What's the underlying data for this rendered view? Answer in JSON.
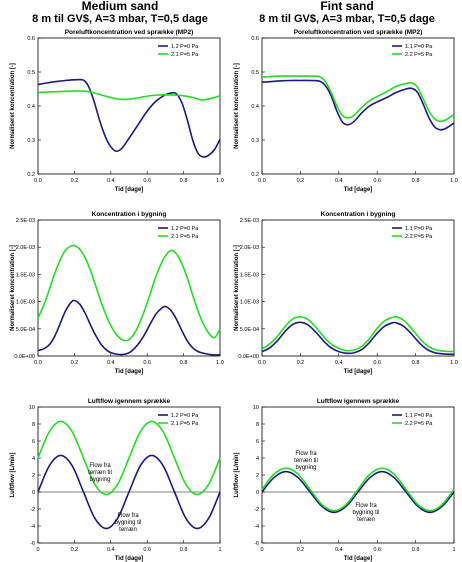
{
  "columns": [
    {
      "title": "Medium sand",
      "subtitle": "8 m til GV$, A=3 mbar, T=0,5 dage"
    },
    {
      "title": "Fint sand",
      "subtitle": "8 m til GV$, A=3 mbar, T=0,5 dage"
    }
  ],
  "colors": {
    "blue": "#1a1a80",
    "green": "#22dd22"
  },
  "chart_data": [
    {
      "type": "line",
      "title": "Poreluftkoncentration ved sprække (MP2)",
      "xlabel": "Tid [dage]",
      "ylabel": "Normaliseret koncentration [-]",
      "xlim": [
        0,
        1
      ],
      "ylim": [
        0.2,
        0.6
      ],
      "xticks": [
        "0.0",
        "0.2",
        "0.4",
        "0.6",
        "0.8",
        "1.0"
      ],
      "yticks": [
        "0.2",
        "0.3",
        "0.4",
        "0.5",
        "0.6"
      ],
      "legend": "top-right",
      "series": [
        {
          "name": "1.2 P=0 Pa",
          "color": "#1a1a80",
          "x": [
            0,
            0.05,
            0.1,
            0.15,
            0.2,
            0.25,
            0.28,
            0.31,
            0.34,
            0.37,
            0.4,
            0.43,
            0.46,
            0.5,
            0.55,
            0.6,
            0.65,
            0.7,
            0.73,
            0.76,
            0.79,
            0.82,
            0.85,
            0.88,
            0.91,
            0.94,
            0.97,
            1.0
          ],
          "y": [
            0.463,
            0.468,
            0.472,
            0.475,
            0.477,
            0.476,
            0.455,
            0.41,
            0.355,
            0.31,
            0.28,
            0.267,
            0.275,
            0.305,
            0.345,
            0.385,
            0.415,
            0.433,
            0.438,
            0.436,
            0.41,
            0.36,
            0.3,
            0.26,
            0.25,
            0.256,
            0.272,
            0.302
          ]
        },
        {
          "name": "2.1 P=5 Pa",
          "color": "#22dd22",
          "x": [
            0,
            0.1,
            0.2,
            0.25,
            0.3,
            0.35,
            0.4,
            0.45,
            0.5,
            0.55,
            0.6,
            0.65,
            0.7,
            0.75,
            0.8,
            0.85,
            0.9,
            0.95,
            1.0
          ],
          "y": [
            0.44,
            0.442,
            0.444,
            0.444,
            0.44,
            0.432,
            0.425,
            0.42,
            0.42,
            0.424,
            0.429,
            0.432,
            0.433,
            0.432,
            0.43,
            0.425,
            0.418,
            0.422,
            0.43
          ]
        }
      ]
    },
    {
      "type": "line",
      "title": "Poreluftkoncentration ved sprække (MP2)",
      "xlabel": "Tid [dage]",
      "ylabel": "Normaliseret koncentration [-]",
      "xlim": [
        0,
        1
      ],
      "ylim": [
        0.2,
        0.6
      ],
      "xticks": [
        "0.0",
        "0.2",
        "0.4",
        "0.6",
        "0.8",
        "1.0"
      ],
      "yticks": [
        "0.2",
        "0.3",
        "0.4",
        "0.5",
        "0.6"
      ],
      "legend": "top-right",
      "series": [
        {
          "name": "1.1 P=0 Pa",
          "color": "#1a1a80",
          "x": [
            0,
            0.05,
            0.1,
            0.15,
            0.2,
            0.25,
            0.3,
            0.33,
            0.36,
            0.39,
            0.42,
            0.45,
            0.48,
            0.52,
            0.56,
            0.6,
            0.65,
            0.7,
            0.75,
            0.78,
            0.81,
            0.84,
            0.87,
            0.9,
            0.93,
            0.96,
            1.0
          ],
          "y": [
            0.47,
            0.472,
            0.474,
            0.475,
            0.475,
            0.475,
            0.473,
            0.46,
            0.43,
            0.385,
            0.352,
            0.345,
            0.355,
            0.38,
            0.4,
            0.412,
            0.425,
            0.44,
            0.45,
            0.452,
            0.44,
            0.405,
            0.365,
            0.338,
            0.33,
            0.335,
            0.35
          ]
        },
        {
          "name": "2.2 P=5 Pa",
          "color": "#22dd22",
          "x": [
            0,
            0.05,
            0.1,
            0.15,
            0.2,
            0.25,
            0.3,
            0.33,
            0.36,
            0.39,
            0.42,
            0.45,
            0.48,
            0.52,
            0.56,
            0.6,
            0.65,
            0.7,
            0.75,
            0.78,
            0.81,
            0.84,
            0.87,
            0.9,
            0.93,
            0.96,
            1.0
          ],
          "y": [
            0.485,
            0.487,
            0.488,
            0.488,
            0.488,
            0.488,
            0.486,
            0.472,
            0.44,
            0.4,
            0.372,
            0.365,
            0.373,
            0.396,
            0.415,
            0.428,
            0.442,
            0.458,
            0.466,
            0.468,
            0.455,
            0.42,
            0.385,
            0.362,
            0.355,
            0.36,
            0.375
          ]
        }
      ]
    },
    {
      "type": "line",
      "title": "Koncentration i bygning",
      "xlabel": "Tid [dage]",
      "ylabel": "Normaliseret koncentration [-]",
      "xlim": [
        0,
        1
      ],
      "ylim": [
        0,
        0.0025
      ],
      "xticks": [
        "0.0",
        "0.2",
        "0.4",
        "0.6",
        "0.8",
        "1.0"
      ],
      "yticks": [
        "0.0E+00",
        "5.0E-04",
        "1.0E-03",
        "1.5E-03",
        "2.0E-03",
        "2.5E-03"
      ],
      "legend": "top-right",
      "series": [
        {
          "name": "1.2 P=0 Pa",
          "color": "#1a1a80",
          "x": [
            0,
            0.03,
            0.06,
            0.09,
            0.12,
            0.15,
            0.18,
            0.2,
            0.23,
            0.26,
            0.29,
            0.32,
            0.35,
            0.38,
            0.41,
            0.44,
            0.47,
            0.5,
            0.53,
            0.56,
            0.59,
            0.62,
            0.65,
            0.68,
            0.7,
            0.73,
            0.76,
            0.79,
            0.82,
            0.85,
            0.88,
            0.91,
            0.94,
            0.97,
            1.0
          ],
          "y": [
            0.0001,
            0.00013,
            0.0002,
            0.00035,
            0.00058,
            0.00082,
            0.00098,
            0.00102,
            0.00095,
            0.00078,
            0.00056,
            0.00036,
            0.0002,
            0.0001,
            5e-05,
            3e-05,
            3e-05,
            6e-05,
            0.00014,
            0.00026,
            0.00042,
            0.00061,
            0.00078,
            0.00088,
            0.00091,
            0.00084,
            0.00068,
            0.00047,
            0.00028,
            0.00015,
            8e-05,
            5e-05,
            3e-05,
            2e-05,
            2e-05
          ]
        },
        {
          "name": "2.1 P=5 Pa",
          "color": "#22dd22",
          "x": [
            0,
            0.03,
            0.06,
            0.09,
            0.12,
            0.15,
            0.18,
            0.2,
            0.23,
            0.26,
            0.29,
            0.32,
            0.35,
            0.38,
            0.41,
            0.44,
            0.47,
            0.5,
            0.53,
            0.56,
            0.59,
            0.62,
            0.65,
            0.68,
            0.7,
            0.73,
            0.76,
            0.79,
            0.82,
            0.85,
            0.88,
            0.91,
            0.94,
            0.97,
            1.0
          ],
          "y": [
            0.0007,
            0.00092,
            0.0012,
            0.0015,
            0.00175,
            0.00194,
            0.00202,
            0.00203,
            0.00196,
            0.0018,
            0.00156,
            0.00126,
            0.00096,
            0.0007,
            0.0005,
            0.00036,
            0.00029,
            0.0003,
            0.00042,
            0.00062,
            0.00088,
            0.00118,
            0.00148,
            0.00172,
            0.00184,
            0.00194,
            0.00188,
            0.0017,
            0.00144,
            0.00112,
            0.00082,
            0.00058,
            0.00041,
            0.00034,
            0.00049
          ]
        }
      ]
    },
    {
      "type": "line",
      "title": "Koncentration i bygning",
      "xlabel": "Tid [dage]",
      "ylabel": "Normaliseret koncentration [-]",
      "xlim": [
        0,
        1
      ],
      "ylim": [
        0,
        0.0025
      ],
      "xticks": [
        "0.0",
        "0.2",
        "0.4",
        "0.6",
        "0.8",
        "1.0"
      ],
      "yticks": [
        "0.0E+00",
        "5.0E-04",
        "1.0E-03",
        "1.5E-03",
        "2.0E-03",
        "2.5E-03"
      ],
      "legend": "top-right",
      "series": [
        {
          "name": "1.1 P=0 Pa",
          "color": "#1a1a80",
          "x": [
            0,
            0.04,
            0.08,
            0.12,
            0.16,
            0.2,
            0.24,
            0.28,
            0.32,
            0.36,
            0.4,
            0.44,
            0.48,
            0.52,
            0.56,
            0.6,
            0.64,
            0.68,
            0.7,
            0.74,
            0.78,
            0.82,
            0.86,
            0.9,
            0.94,
            1.0
          ],
          "y": [
            8e-05,
            0.00015,
            0.00028,
            0.00045,
            0.00058,
            0.00062,
            0.00057,
            0.00044,
            0.00028,
            0.00015,
            8e-05,
            5e-05,
            6e-05,
            0.00012,
            0.00025,
            0.00042,
            0.00055,
            0.00061,
            0.00061,
            0.00054,
            0.0004,
            0.00024,
            0.00012,
            6e-05,
            4e-05,
            3e-05
          ]
        },
        {
          "name": "2.2 P=5 Pa",
          "color": "#22dd22",
          "x": [
            0,
            0.04,
            0.08,
            0.12,
            0.16,
            0.2,
            0.24,
            0.28,
            0.32,
            0.36,
            0.4,
            0.44,
            0.48,
            0.52,
            0.56,
            0.6,
            0.64,
            0.68,
            0.7,
            0.74,
            0.78,
            0.82,
            0.86,
            0.9,
            0.94,
            1.0
          ],
          "y": [
            0.00013,
            0.00022,
            0.00036,
            0.00054,
            0.00068,
            0.00072,
            0.00067,
            0.00053,
            0.00036,
            0.00022,
            0.00014,
            0.0001,
            0.00011,
            0.00018,
            0.00032,
            0.00051,
            0.00065,
            0.00071,
            0.00072,
            0.00065,
            0.0005,
            0.00033,
            0.00019,
            0.00012,
            9e-05,
            8e-05
          ]
        }
      ]
    },
    {
      "type": "line",
      "title": "Luftflow igennem sprække",
      "xlabel": "Tid [dage]",
      "ylabel": "Luftflow [L/min]",
      "xlim": [
        0,
        1
      ],
      "ylim": [
        -6,
        10
      ],
      "xticks": [
        "0",
        "0.2",
        "0.4",
        "0.6",
        "0.8",
        "1"
      ],
      "yticks": [
        "-6",
        "-4",
        "-2",
        "0",
        "2",
        "4",
        "6",
        "8",
        "10"
      ],
      "legend": "top-right",
      "annotations": [
        "Flow fra terræn til bygning",
        "Flow fra bygning til terræn"
      ],
      "series": [
        {
          "name": "1.2 P=0 Pa",
          "color": "#1a1a80",
          "x": [
            0,
            0.0625,
            0.125,
            0.1875,
            0.25,
            0.3125,
            0.375,
            0.4375,
            0.5,
            0.5625,
            0.625,
            0.6875,
            0.75,
            0.8125,
            0.875,
            0.9375,
            1.0
          ],
          "y": [
            0,
            3.1,
            4.3,
            3.1,
            0,
            -3.1,
            -4.3,
            -3.1,
            0,
            3.1,
            4.3,
            3.1,
            0,
            -3.1,
            -4.3,
            -3.1,
            0
          ]
        },
        {
          "name": "2.1 P=5 Pa",
          "color": "#22dd22",
          "x": [
            0,
            0.0625,
            0.125,
            0.1875,
            0.25,
            0.3125,
            0.375,
            0.4375,
            0.5,
            0.5625,
            0.625,
            0.6875,
            0.75,
            0.8125,
            0.875,
            0.9375,
            1.0
          ],
          "y": [
            4,
            7.1,
            8.3,
            7.1,
            4,
            0.9,
            -0.3,
            0.9,
            4,
            7.1,
            8.3,
            7.1,
            4,
            0.9,
            -0.3,
            0.9,
            4
          ]
        }
      ]
    },
    {
      "type": "line",
      "title": "Luftflow igennem sprække",
      "xlabel": "Tid [dage]",
      "ylabel": "Luftflow [L/min]",
      "xlim": [
        0,
        1
      ],
      "ylim": [
        -6,
        10
      ],
      "xticks": [
        "0",
        "0.2",
        "0.4",
        "0.6",
        "0.8",
        "1"
      ],
      "yticks": [
        "-6",
        "-4",
        "-2",
        "0",
        "2",
        "4",
        "6",
        "8",
        "10"
      ],
      "legend": "top-right",
      "annotations": [
        "Flow fra terræn til bygning",
        "Flow fra bygning til terræn"
      ],
      "series": [
        {
          "name": "1.1 P=0 Pa",
          "color": "#1a1a80",
          "x": [
            0,
            0.0625,
            0.125,
            0.1875,
            0.25,
            0.3125,
            0.375,
            0.4375,
            0.5,
            0.5625,
            0.625,
            0.6875,
            0.75,
            0.8125,
            0.875,
            0.9375,
            1.0
          ],
          "y": [
            0,
            1.7,
            2.4,
            1.7,
            0,
            -1.7,
            -2.4,
            -1.7,
            0,
            1.7,
            2.4,
            1.7,
            0,
            -1.7,
            -2.4,
            -1.7,
            0
          ]
        },
        {
          "name": "2.2 P=5 Pa",
          "color": "#22dd22",
          "x": [
            0,
            0.0625,
            0.125,
            0.1875,
            0.25,
            0.3125,
            0.375,
            0.4375,
            0.5,
            0.5625,
            0.625,
            0.6875,
            0.75,
            0.8125,
            0.875,
            0.9375,
            1.0
          ],
          "y": [
            0.3,
            2.1,
            2.8,
            2.1,
            0.3,
            -1.5,
            -2.2,
            -1.5,
            0.3,
            2.1,
            2.8,
            2.1,
            0.3,
            -1.5,
            -2.2,
            -1.5,
            0.3
          ]
        }
      ]
    }
  ]
}
